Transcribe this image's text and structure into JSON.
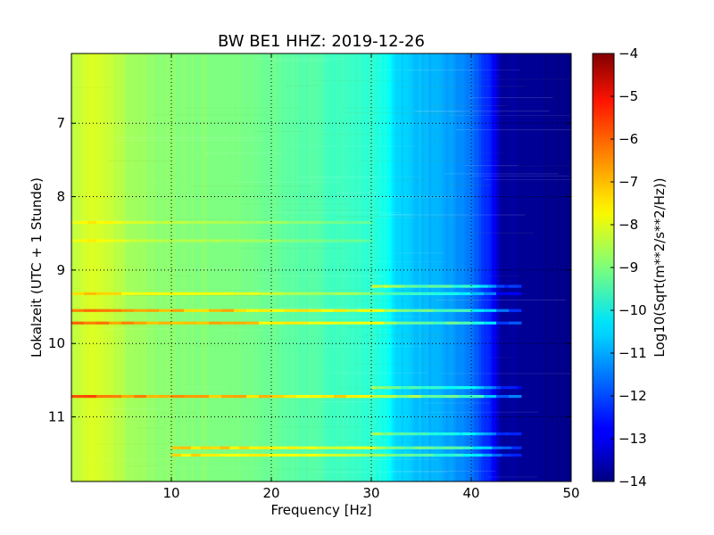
{
  "chart_data": {
    "type": "heatmap",
    "title": "BW BE1 HHZ: 2019-12-26",
    "xlabel": "Frequency [Hz]",
    "ylabel": "Lokalzeit (UTC + 1 Stunde)",
    "xlim": [
      0,
      50
    ],
    "ylim": [
      11.88,
      6.05
    ],
    "y_inverted": true,
    "grid": true,
    "xticks": [
      10,
      20,
      30,
      40,
      50
    ],
    "yticks": [
      7,
      8,
      9,
      10,
      11
    ],
    "colormap": "jet",
    "colorbar": {
      "label": "Log10(Sqrt(m**2/s**2/Hz))",
      "range": [
        -14,
        -4
      ],
      "ticks": [
        -4,
        -5,
        -6,
        -7,
        -8,
        -9,
        -10,
        -11,
        -12,
        -13,
        -14
      ]
    },
    "spectrum_profile": {
      "frequency_hz": [
        0,
        2,
        4,
        6,
        10,
        15,
        20,
        25,
        30,
        31.5,
        32.5,
        35,
        38,
        40,
        42,
        43,
        50
      ],
      "level": [
        -8.4,
        -8.1,
        -8.3,
        -8.7,
        -8.9,
        -9.0,
        -9.2,
        -9.5,
        -9.8,
        -10.1,
        -10.6,
        -10.9,
        -11.2,
        -11.6,
        -12.6,
        -13.7,
        -13.9
      ]
    },
    "bands": [
      {
        "time": 8.35,
        "f_from": 0,
        "f_to": 30,
        "delta": 0.5
      },
      {
        "time": 8.6,
        "f_from": 0,
        "f_to": 30,
        "delta": 0.45
      },
      {
        "time": 9.22,
        "f_from": 30,
        "f_to": 45,
        "delta": 1.6
      },
      {
        "time": 9.32,
        "f_from": 0,
        "f_to": 45,
        "delta": 1.0
      },
      {
        "time": 9.55,
        "f_from": 0,
        "f_to": 45,
        "delta": 1.8
      },
      {
        "time": 9.72,
        "f_from": 0,
        "f_to": 45,
        "delta": 1.8
      },
      {
        "time": 10.6,
        "f_from": 30,
        "f_to": 45,
        "delta": 1.2
      },
      {
        "time": 10.72,
        "f_from": 0,
        "f_to": 45,
        "delta": 2.0
      },
      {
        "time": 11.23,
        "f_from": 30,
        "f_to": 45,
        "delta": 1.2
      },
      {
        "time": 11.42,
        "f_from": 10,
        "f_to": 45,
        "delta": 1.6
      },
      {
        "time": 11.52,
        "f_from": 10,
        "f_to": 45,
        "delta": 1.4
      }
    ]
  }
}
